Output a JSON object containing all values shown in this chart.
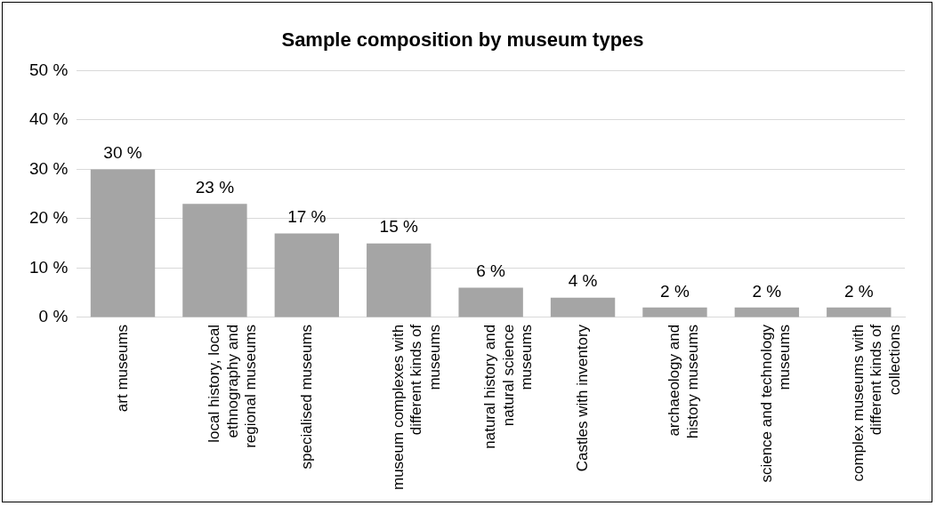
{
  "chart_data": {
    "type": "bar",
    "title": "Sample composition by museum types",
    "categories": [
      "art museums",
      "local history, local ethnography and regional museums",
      "specialised museums",
      "museum complexes with different kinds of museums",
      "natural history and natural science museums",
      "Castles with inventory",
      "archaeology and history museums",
      "science and technology museums",
      "complex museums with different kinds of collections"
    ],
    "values": [
      30,
      23,
      17,
      15,
      6,
      4,
      2,
      2,
      2
    ],
    "value_labels": [
      "30 %",
      "23 %",
      "17 %",
      "15 %",
      "6 %",
      "4 %",
      "2 %",
      "2 %",
      "2 %"
    ],
    "color": "#a5a5a5",
    "ylim": [
      0,
      50
    ],
    "yticks": [
      {
        "value": 0,
        "label": "0 %"
      },
      {
        "value": 10,
        "label": "10 %"
      },
      {
        "value": 20,
        "label": "20 %"
      },
      {
        "value": 30,
        "label": "30 %"
      },
      {
        "value": 40,
        "label": "40 %"
      },
      {
        "value": 50,
        "label": "50 %"
      }
    ],
    "grid": "y"
  }
}
